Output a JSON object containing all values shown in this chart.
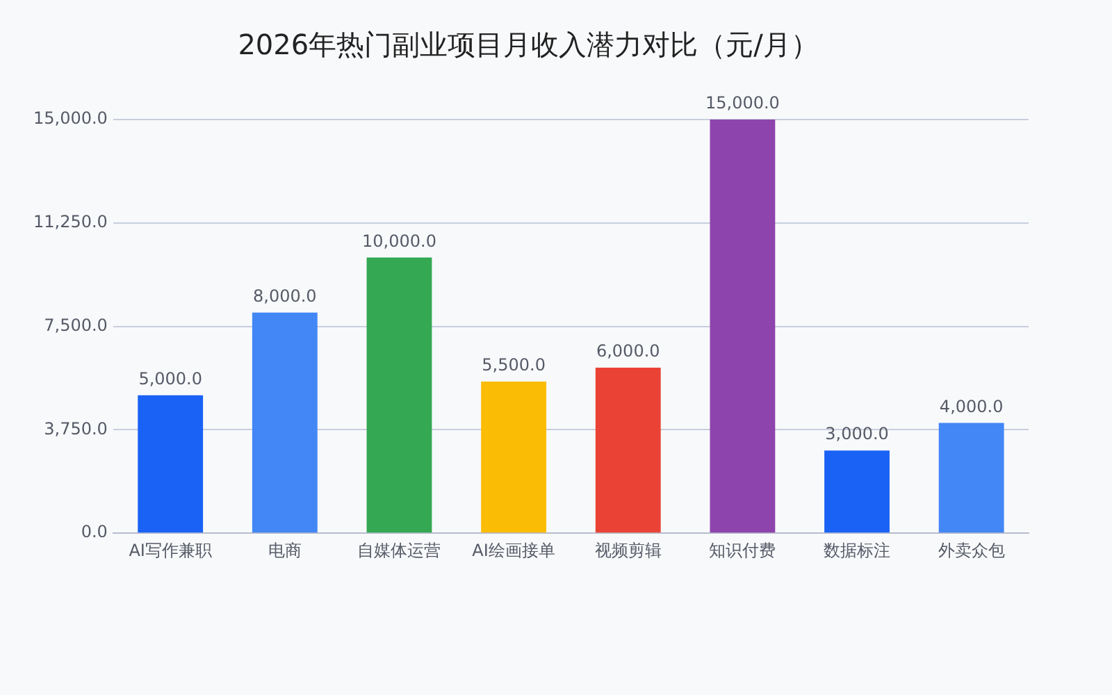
{
  "chart_data": {
    "type": "bar",
    "title": "2026年热门副业项目月收入潜力对比（元/月）",
    "categories": [
      "AI写作兼职",
      "电商",
      "自媒体运营",
      "AI绘画接单",
      "视频剪辑",
      "知识付费",
      "数据标注",
      "外卖众包"
    ],
    "values": [
      5000,
      8000,
      10000,
      5500,
      6000,
      15000,
      3000,
      4000
    ],
    "colors": [
      "#1a62f5",
      "#4287f5",
      "#34a853",
      "#fbbc05",
      "#ea4335",
      "#8e44ad",
      "#1a62f5",
      "#4287f5"
    ],
    "value_labels": [
      "5,000.0",
      "8,000.0",
      "10,000.0",
      "5,500.0",
      "6,000.0",
      "15,000.0",
      "3,000.0",
      "4,000.0"
    ],
    "ylim": [
      0,
      15000
    ],
    "yticks": [
      {
        "value": 0,
        "label": "0.0"
      },
      {
        "value": 3750,
        "label": "3,750.0"
      },
      {
        "value": 7500,
        "label": "7,500.0"
      },
      {
        "value": 11250,
        "label": "11,250.0"
      },
      {
        "value": 15000,
        "label": "15,000.0"
      }
    ],
    "grid": "y",
    "legend": false
  }
}
